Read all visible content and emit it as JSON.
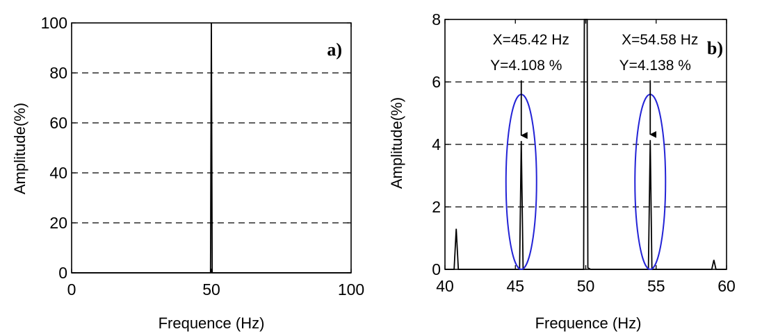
{
  "chart_data": [
    {
      "type": "line",
      "panel_label": "a)",
      "xlabel": "Frequence (Hz)",
      "ylabel": "Amplitude(%)",
      "xlim": [
        0,
        100
      ],
      "ylim": [
        0,
        100
      ],
      "xticks": [
        0,
        50,
        100
      ],
      "yticks": [
        0,
        20,
        40,
        60,
        80,
        100
      ],
      "grid": "horizontal dashed",
      "series": [
        {
          "x": [
            0,
            49.7,
            50,
            50.3,
            100
          ],
          "y": [
            0,
            0,
            100,
            0,
            0
          ]
        }
      ]
    },
    {
      "type": "line",
      "panel_label": "b)",
      "xlabel": "Frequence (Hz)",
      "ylabel": "Amplitude(%)",
      "xlim": [
        40,
        60
      ],
      "ylim": [
        0,
        8
      ],
      "xticks": [
        40,
        45,
        50,
        55,
        60
      ],
      "yticks": [
        0,
        2,
        4,
        6,
        8
      ],
      "grid": "horizontal dashed",
      "series": [
        {
          "x": [
            40,
            40.65,
            40.8,
            40.95,
            45.3,
            45.42,
            45.55,
            49.85,
            49.9,
            50.1,
            50.15,
            50.35,
            54.45,
            54.58,
            54.7,
            58.95,
            59.1,
            59.25,
            60
          ],
          "y": [
            0,
            0,
            1.3,
            0,
            0,
            4.108,
            0,
            0,
            8,
            8,
            0.05,
            0,
            0,
            4.138,
            0,
            0,
            0.3,
            0,
            0
          ]
        }
      ],
      "annotations": [
        {
          "x": 45.42,
          "y": 4.108,
          "line1": "X=45.42 Hz",
          "line2": "Y=4.108 %",
          "highlight_color": "#2323d6"
        },
        {
          "x": 54.58,
          "y": 4.138,
          "line1": "X=54.58 Hz",
          "line2": "Y=4.138 %",
          "highlight_color": "#2323d6"
        }
      ]
    }
  ]
}
